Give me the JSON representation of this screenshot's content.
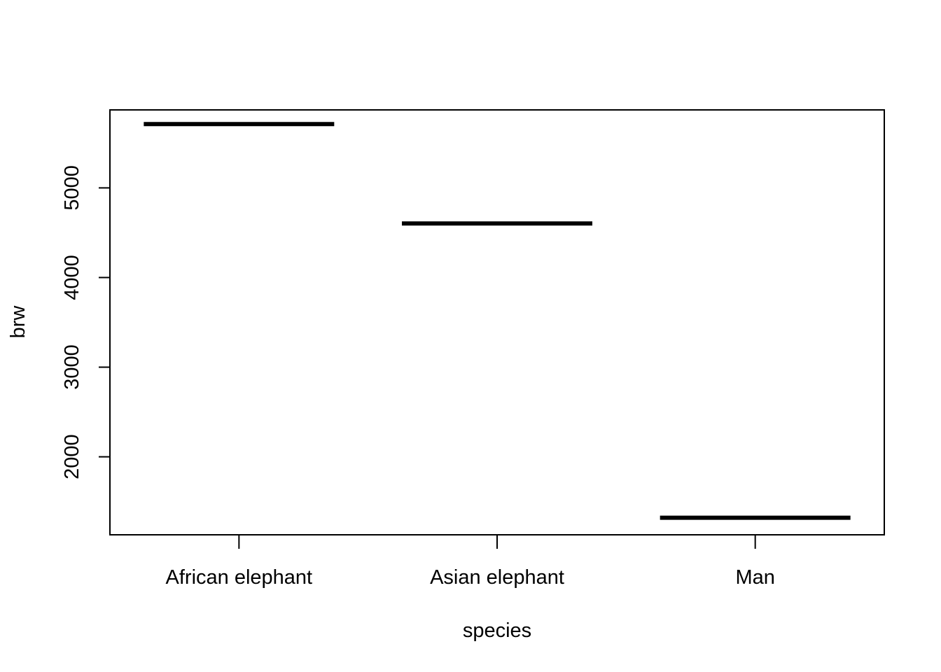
{
  "chart_data": {
    "type": "bar",
    "title": "",
    "xlabel": "species",
    "ylabel": "brw",
    "categories": [
      "African elephant",
      "Asian elephant",
      "Man"
    ],
    "values": [
      5712,
      4603,
      1320
    ],
    "ylim": [
      1130,
      5870
    ],
    "yticks": [
      2000,
      3000,
      4000,
      5000
    ],
    "grid": false,
    "legend": "none",
    "colors": {
      "line": "#000000",
      "axis": "#000000",
      "background": "#ffffff"
    }
  }
}
